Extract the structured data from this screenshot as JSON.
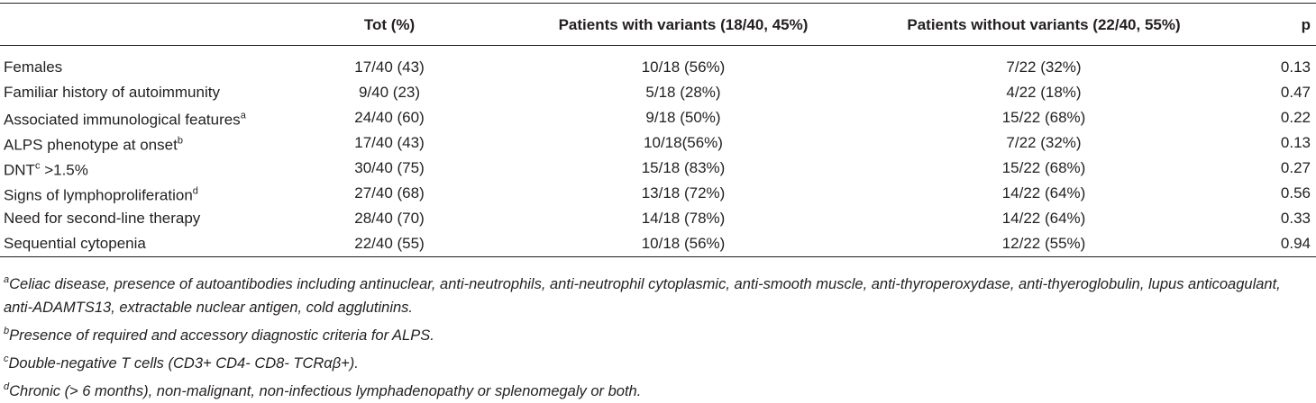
{
  "table": {
    "header": [
      "",
      "Tot (%)",
      "Patients with variants (18/40, 45%)",
      "Patients without variants (22/40, 55%)",
      "p"
    ],
    "rows": [
      {
        "label": "Females",
        "cells": [
          "17/40 (43)",
          "10/18 (56%)",
          "7/22 (32%)",
          "0.13"
        ]
      },
      {
        "label": "Familiar history of autoimmunity",
        "cells": [
          "9/40 (23)",
          "5/18 (28%)",
          "4/22 (18%)",
          "0.47"
        ]
      },
      {
        "label": "Associated immunological features",
        "sup": "a",
        "cells": [
          "24/40 (60)",
          "9/18 (50%)",
          "15/22 (68%)",
          "0.22"
        ]
      },
      {
        "label": "ALPS phenotype at onset",
        "sup": "b",
        "cells": [
          "17/40 (43)",
          "10/18(56%)",
          "7/22 (32%)",
          "0.13"
        ]
      },
      {
        "label": "DNT",
        "sup": "c",
        "label_after": ">1.5%",
        "cells": [
          "30/40 (75)",
          "15/18 (83%)",
          "15/22 (68%)",
          "0.27"
        ]
      },
      {
        "label": "Signs of lymphoproliferation",
        "sup": "d",
        "cells": [
          "27/40 (68)",
          "13/18 (72%)",
          "14/22 (64%)",
          "0.56"
        ]
      },
      {
        "label": "Need for second-line therapy",
        "cells": [
          "28/40 (70)",
          "14/18 (78%)",
          "14/22 (64%)",
          "0.33"
        ]
      },
      {
        "label": "Sequential cytopenia",
        "cells": [
          "22/40 (55)",
          "10/18 (56%)",
          "12/22 (55%)",
          "0.94"
        ]
      }
    ],
    "footnotes": [
      {
        "marker": "a",
        "text": "Celiac disease, presence of autoantibodies including antinuclear, anti-neutrophils, anti-neutrophil cytoplasmic, anti-smooth muscle, anti-thyroperoxydase, anti-thyeroglobulin, lupus anticoagulant, anti-ADAMTS13, extractable nuclear antigen, cold agglutinins."
      },
      {
        "marker": "b",
        "text": "Presence of required and accessory diagnostic criteria for ALPS."
      },
      {
        "marker": "c",
        "text": "Double-negative T cells (CD3+ CD4- CD8- TCRαβ+)."
      },
      {
        "marker": "d",
        "text": "Chronic (> 6 months), non-malignant, non-infectious lymphadenopathy or splenomegaly or both."
      }
    ]
  }
}
